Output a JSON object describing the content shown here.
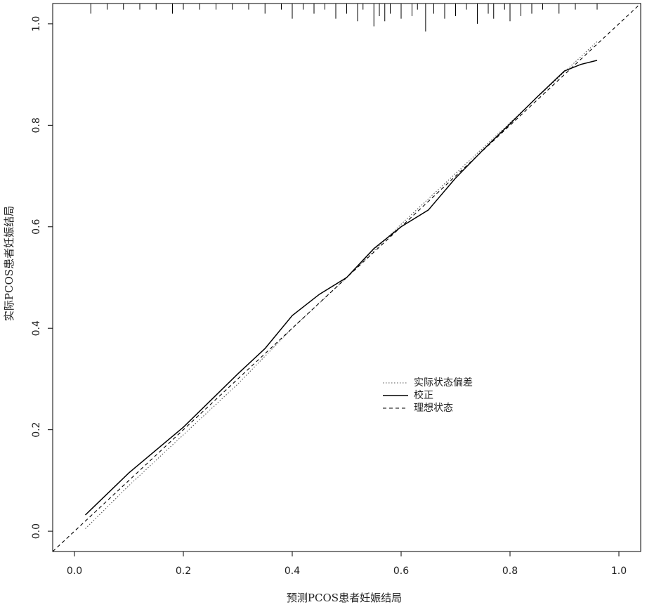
{
  "chart_data": {
    "type": "line",
    "x_label": "预测PCOS患者妊娠结局",
    "y_label": "实际PCOS患者妊娠结局",
    "xlim": [
      -0.04,
      1.04
    ],
    "ylim": [
      -0.04,
      1.04
    ],
    "xticks": [
      {
        "value": 0,
        "label": "0.0"
      },
      {
        "value": 0.2,
        "label": "0.2"
      },
      {
        "value": 0.4,
        "label": "0.4"
      },
      {
        "value": 0.6,
        "label": "0.6"
      },
      {
        "value": 0.8,
        "label": "0.8"
      },
      {
        "value": 1,
        "label": "1.0"
      }
    ],
    "yticks": [
      {
        "value": 0,
        "label": "0.0"
      },
      {
        "value": 0.2,
        "label": "0.2"
      },
      {
        "value": 0.4,
        "label": "0.4"
      },
      {
        "value": 0.6,
        "label": "0.6"
      },
      {
        "value": 0.8,
        "label": "0.8"
      },
      {
        "value": 1,
        "label": "1.0"
      }
    ],
    "grid": false,
    "legend": "right",
    "series": [
      {
        "name": "实际状态偏差",
        "color": "#555555",
        "dash": "dotted",
        "x": [
          0.02,
          0.1,
          0.2,
          0.3,
          0.4,
          0.5,
          0.6,
          0.7,
          0.8,
          0.9,
          0.96
        ],
        "values": [
          0.005,
          0.09,
          0.19,
          0.29,
          0.4,
          0.5,
          0.605,
          0.705,
          0.805,
          0.905,
          0.965
        ]
      },
      {
        "name": "校正",
        "color": "#000000",
        "dash": "solid",
        "x": [
          0.02,
          0.1,
          0.2,
          0.3,
          0.35,
          0.4,
          0.45,
          0.5,
          0.55,
          0.6,
          0.65,
          0.7,
          0.75,
          0.8,
          0.85,
          0.9,
          0.93,
          0.96
        ],
        "values": [
          0.032,
          0.115,
          0.205,
          0.31,
          0.36,
          0.425,
          0.467,
          0.5,
          0.557,
          0.6,
          0.633,
          0.696,
          0.751,
          0.803,
          0.856,
          0.907,
          0.92,
          0.928
        ]
      },
      {
        "name": "理想状态",
        "color": "#000000",
        "dash": "dashed",
        "x": [
          -0.04,
          1.04
        ],
        "values": [
          -0.04,
          1.04
        ]
      }
    ],
    "rug": {
      "x": [
        0.03,
        0.06,
        0.09,
        0.12,
        0.15,
        0.18,
        0.2,
        0.23,
        0.26,
        0.29,
        0.32,
        0.35,
        0.38,
        0.4,
        0.42,
        0.44,
        0.46,
        0.48,
        0.5,
        0.52,
        0.53,
        0.55,
        0.56,
        0.57,
        0.58,
        0.6,
        0.62,
        0.63,
        0.645,
        0.66,
        0.68,
        0.7,
        0.72,
        0.74,
        0.76,
        0.77,
        0.79,
        0.8,
        0.82,
        0.84,
        0.86,
        0.89,
        0.92,
        0.96
      ],
      "lengths": [
        0.02,
        0.012,
        0.012,
        0.012,
        0.012,
        0.02,
        0.012,
        0.012,
        0.012,
        0.012,
        0.012,
        0.02,
        0.012,
        0.03,
        0.012,
        0.02,
        0.012,
        0.03,
        0.02,
        0.035,
        0.012,
        0.045,
        0.025,
        0.035,
        0.02,
        0.03,
        0.025,
        0.012,
        0.055,
        0.02,
        0.03,
        0.025,
        0.012,
        0.04,
        0.02,
        0.03,
        0.012,
        0.035,
        0.025,
        0.02,
        0.012,
        0.02,
        0.012,
        0.012
      ]
    }
  }
}
